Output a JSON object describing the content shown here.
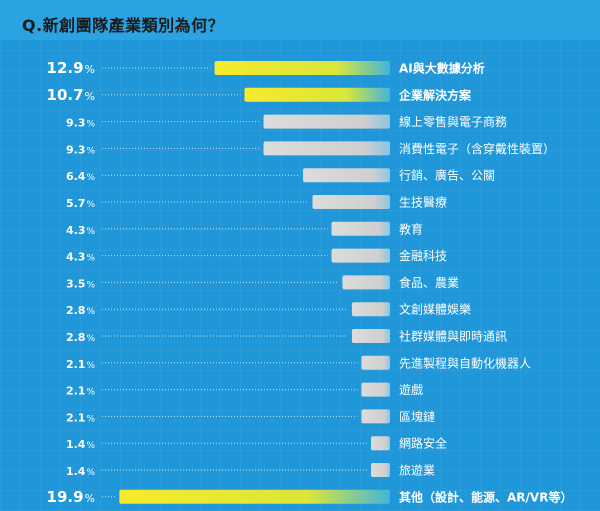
{
  "title": "Q.新創團隊產業類別為何？",
  "colors": {
    "background": "#1f97d9",
    "highlight_bar": "#f5e62a",
    "normal_bar": "#d6d6d6",
    "text": "#ffffff"
  },
  "chart_data": {
    "type": "bar",
    "orientation": "horizontal",
    "value_suffix": "%",
    "categories": [
      "AI與大數據分析",
      "企業解決方案",
      "線上零售與電子商務",
      "消費性電子（含穿戴性裝置）",
      "行銷、廣告、公關",
      "生技醫療",
      "教育",
      "金融科技",
      "食品、農業",
      "文創媒體娛樂",
      "社群媒體與即時通訊",
      "先進製程與自動化機器人",
      "遊戲",
      "區塊鏈",
      "網路安全",
      "旅遊業",
      "其他（設計、能源、AR/VR等）"
    ],
    "values": [
      12.9,
      10.7,
      9.3,
      9.3,
      6.4,
      5.7,
      4.3,
      4.3,
      3.5,
      2.8,
      2.8,
      2.1,
      2.1,
      2.1,
      1.4,
      1.4,
      19.9
    ],
    "value_labels": [
      "12.9",
      "10.7",
      "9.3",
      "9.3",
      "6.4",
      "5.7",
      "4.3",
      "4.3",
      "3.5",
      "2.8",
      "2.8",
      "2.1",
      "2.1",
      "2.1",
      "1.4",
      "1.4",
      "19.9"
    ],
    "highlighted": [
      true,
      true,
      false,
      false,
      false,
      false,
      false,
      false,
      false,
      false,
      false,
      false,
      false,
      false,
      false,
      false,
      true
    ]
  }
}
